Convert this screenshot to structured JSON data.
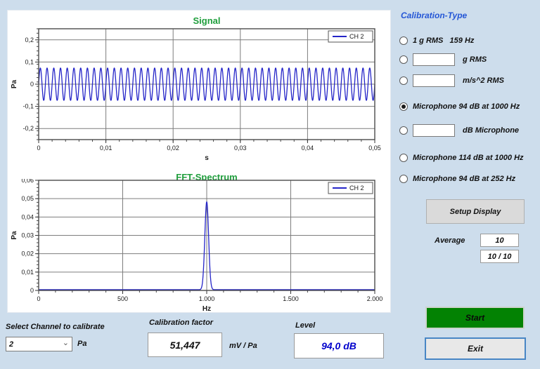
{
  "window": {
    "background": "#cdddec"
  },
  "colors": {
    "title_green": "#1f9e3c",
    "curve_blue": "#2525c8",
    "heading_blue": "#2456d6",
    "start_green": "#038203",
    "exit_border_blue": "#4886c5",
    "level_blue": "#0000cc"
  },
  "chart_data": [
    {
      "id": "signal",
      "type": "line",
      "title": "Signal",
      "xlabel": "s",
      "ylabel": "Pa",
      "xlim": [
        0,
        0.05
      ],
      "ylim": [
        -0.25,
        0.25
      ],
      "x_ticks": [
        0,
        0.01,
        0.02,
        0.03,
        0.04,
        0.05
      ],
      "x_tick_labels": [
        "0",
        "0,01",
        "0,02",
        "0,03",
        "0,04",
        "0,05"
      ],
      "x_minor_step": 0.002,
      "y_ticks": [
        0.2,
        0.1,
        0,
        -0.1,
        -0.2
      ],
      "y_tick_labels": [
        "0,2",
        "0,1",
        "0",
        "-0,1",
        "-0,2"
      ],
      "y_minor_step": 0.02,
      "grid": true,
      "legend": [
        "CH 2"
      ],
      "legend_position": "top-right",
      "series": [
        {
          "name": "CH 2",
          "color": "#2525c8",
          "waveform": "sine",
          "frequency_hz": 1000,
          "amplitude": 0.073,
          "duration_s": 0.05
        }
      ]
    },
    {
      "id": "fft-spectrum",
      "type": "line",
      "title": "FFT-Spectrum",
      "xlabel": "Hz",
      "ylabel": "Pa",
      "xlim": [
        0,
        2000
      ],
      "ylim": [
        0,
        0.06
      ],
      "x_ticks": [
        0,
        500,
        1000,
        1500,
        2000
      ],
      "x_tick_labels": [
        "0",
        "500",
        "1.000",
        "1.500",
        "2.000"
      ],
      "x_minor_step": 100,
      "y_ticks": [
        0.06,
        0.05,
        0.04,
        0.03,
        0.02,
        0.01,
        0
      ],
      "y_tick_labels": [
        "0,06",
        "0,05",
        "0,04",
        "0,03",
        "0,02",
        "0,01",
        "0"
      ],
      "y_minor_step": 0.002,
      "grid": true,
      "legend": [
        "CH 2"
      ],
      "legend_position": "top-right",
      "series": [
        {
          "name": "CH 2",
          "color": "#2525c8",
          "peak_hz": 1000,
          "peak_value": 0.048,
          "peak_width_hz": 16,
          "baseline": 0.0004
        }
      ]
    }
  ],
  "calibration": {
    "heading": "Calibration-Type",
    "options": [
      {
        "label": "1 g RMS   159 Hz",
        "selected": false,
        "has_input": false
      },
      {
        "label": "g RMS",
        "selected": false,
        "has_input": true,
        "input_value": ""
      },
      {
        "label": "m/s^2 RMS",
        "selected": false,
        "has_input": true,
        "input_value": ""
      },
      {
        "label": "Microphone 94 dB at 1000 Hz",
        "selected": true,
        "has_input": false
      },
      {
        "label": "dB Microphone",
        "selected": false,
        "has_input": true,
        "input_value": ""
      },
      {
        "label": "Microphone 114 dB at 1000 Hz",
        "selected": false,
        "has_input": false
      },
      {
        "label": "Microphone 94 dB at 252 Hz",
        "selected": false,
        "has_input": false
      }
    ],
    "setup_display_label": "Setup Display",
    "average_label": "Average",
    "average_value": "10",
    "average_progress": "10 / 10",
    "start_label": "Start",
    "exit_label": "Exit"
  },
  "footer": {
    "channel_label": "Select Channel to calibrate",
    "channel_value": "2",
    "channel_unit": "Pa",
    "calibration_factor_label": "Calibration factor",
    "calibration_factor_value": "51,447",
    "calibration_factor_unit": "mV / Pa",
    "level_label": "Level",
    "level_value": "94,0 dB"
  }
}
